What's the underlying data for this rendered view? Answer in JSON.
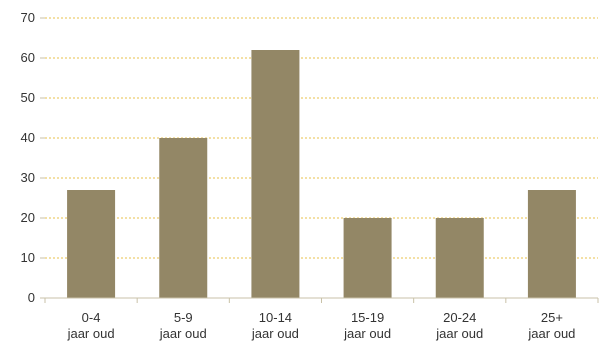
{
  "chart_data": {
    "type": "bar",
    "title": "",
    "xlabel": "",
    "ylabel": "",
    "ylim": [
      0,
      70
    ],
    "yticks": [
      0,
      10,
      20,
      30,
      40,
      50,
      60,
      70
    ],
    "grid": true,
    "legend": "none",
    "bar_color": "#938766",
    "grid_color": "#e8c24a",
    "categories": [
      {
        "line1": "0-4",
        "line2": "jaar oud"
      },
      {
        "line1": "5-9",
        "line2": "jaar oud"
      },
      {
        "line1": "10-14",
        "line2": "jaar oud"
      },
      {
        "line1": "15-19",
        "line2": "jaar oud"
      },
      {
        "line1": "20-24",
        "line2": "jaar oud"
      },
      {
        "line1": "25+",
        "line2": "jaar oud"
      }
    ],
    "values": [
      27,
      40,
      62,
      20,
      20,
      27
    ]
  }
}
